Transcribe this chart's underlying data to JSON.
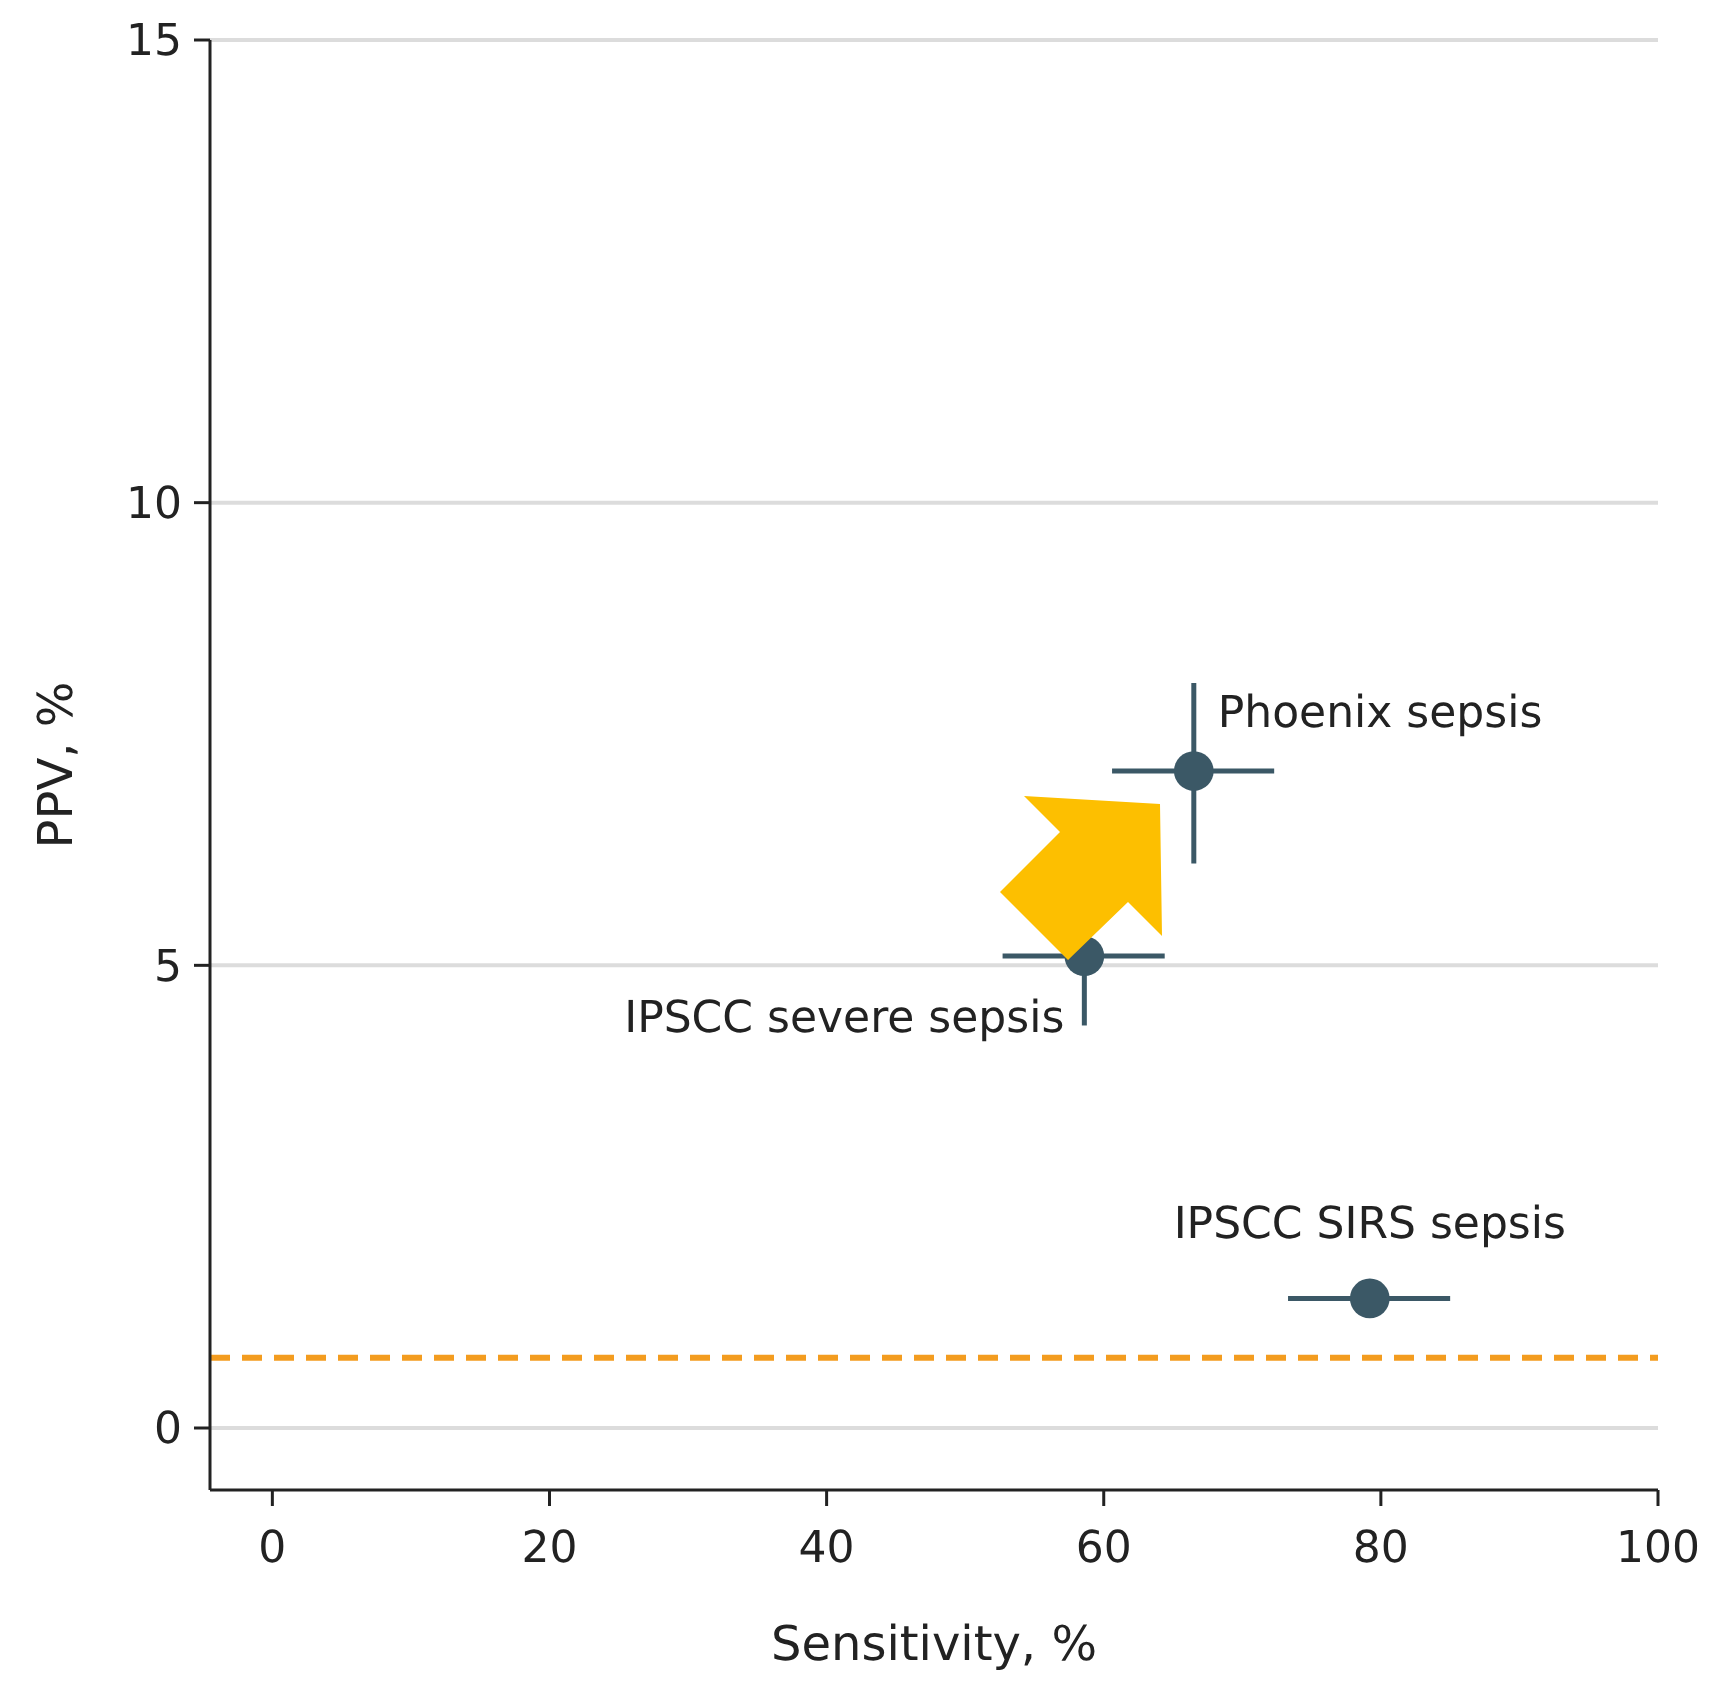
{
  "chart_data": {
    "type": "scatter",
    "xlabel": "Sensitivity, %",
    "ylabel": "PPV, %",
    "x": [
      66.5,
      58.6,
      79.2
    ],
    "series": [
      {
        "color": "#3b5866",
        "values": [
          7.1,
          5.1,
          1.4
        ],
        "errors": [
          [
            6.1,
            8.05
          ],
          [
            4.35,
            5.1
          ],
          null
        ],
        "xerrors": [
          [
            60.6,
            72.3
          ],
          [
            52.7,
            64.4
          ],
          [
            73.3,
            85.0
          ]
        ]
      }
    ],
    "xlim": [
      -4.5,
      100
    ],
    "xticks": [
      0,
      20,
      40,
      60,
      80,
      100
    ],
    "ylim": [
      -0.67,
      15
    ],
    "yticks": [
      0,
      5,
      10,
      15
    ],
    "grid": "y",
    "marker": "circle",
    "ref_lines": [
      {
        "axis": "y",
        "value": 0.76,
        "color": "#f39c1f",
        "line_style": "dashed"
      }
    ],
    "annotations": [
      {
        "text": "Phoenix sepsis",
        "x": 66.5,
        "y": 7.1
      },
      {
        "text": "IPSCC severe sepsis",
        "x": 58.6,
        "y": 5.1
      },
      {
        "text": "IPSCC SIRS sepsis",
        "x": 79.2,
        "y": 1.4
      }
    ]
  }
}
